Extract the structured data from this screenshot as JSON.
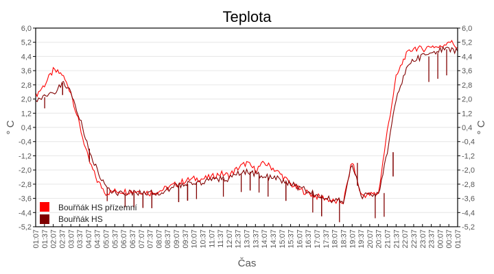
{
  "chart_data": {
    "type": "line",
    "title": "Teplota",
    "xlabel": "Čas",
    "ylabel": "° C",
    "ylim": [
      -5.2,
      6.0
    ],
    "yticks": [
      "6,0",
      "5,2",
      "4,4",
      "3,6",
      "2,8",
      "2,0",
      "1,2",
      "0,4",
      "-0,4",
      "-1,2",
      "-2,0",
      "-2,8",
      "-3,6",
      "-4,4",
      "-5,2"
    ],
    "grid": true,
    "legend_position": "lower-left-inside",
    "categories": [
      "01:07",
      "01:37",
      "02:07",
      "02:37",
      "03:07",
      "03:37",
      "04:07",
      "04:37",
      "05:07",
      "05:37",
      "06:07",
      "06:37",
      "07:07",
      "07:37",
      "08:07",
      "08:37",
      "09:07",
      "09:37",
      "10:07",
      "10:37",
      "11:07",
      "11:37",
      "12:07",
      "12:37",
      "13:07",
      "13:37",
      "14:07",
      "14:37",
      "15:07",
      "15:37",
      "16:07",
      "16:37",
      "17:07",
      "17:37",
      "18:07",
      "18:37",
      "19:07",
      "19:37",
      "20:07",
      "20:37",
      "21:07",
      "21:37",
      "22:07",
      "22:37",
      "23:07",
      "23:37",
      "00:07",
      "00:37",
      "01:07"
    ],
    "series": [
      {
        "name": "Bouřňák HS přízemní",
        "color": "#ff0000",
        "values": [
          2.2,
          2.8,
          3.6,
          3.4,
          2.4,
          0.5,
          -1.4,
          -2.6,
          -3.3,
          -3.2,
          -3.2,
          -3.2,
          -3.2,
          -3.3,
          -3.2,
          -3.0,
          -2.8,
          -2.6,
          -2.5,
          -2.5,
          -2.4,
          -2.2,
          -2.3,
          -1.9,
          -1.6,
          -2.0,
          -1.6,
          -1.9,
          -2.3,
          -2.8,
          -3.1,
          -3.3,
          -3.5,
          -3.6,
          -3.8,
          -3.8,
          -1.5,
          -3.4,
          -3.4,
          -3.3,
          0.2,
          3.2,
          4.4,
          4.9,
          4.8,
          5.0,
          4.9,
          5.3,
          4.9
        ]
      },
      {
        "name": "Bouřňák HS",
        "color": "#800000",
        "values": [
          1.9,
          2.1,
          2.3,
          2.9,
          2.4,
          1.0,
          -0.8,
          -2.0,
          -3.0,
          -3.3,
          -3.3,
          -3.3,
          -3.3,
          -3.3,
          -3.3,
          -3.1,
          -2.9,
          -2.8,
          -2.7,
          -2.7,
          -2.6,
          -2.5,
          -2.5,
          -2.2,
          -2.1,
          -2.2,
          -2.4,
          -2.4,
          -2.6,
          -2.8,
          -3.0,
          -3.2,
          -3.4,
          -3.6,
          -3.7,
          -3.8,
          -1.6,
          -3.5,
          -3.4,
          -3.3,
          -1.0,
          2.0,
          3.5,
          4.2,
          4.4,
          4.6,
          4.8,
          4.8,
          4.7
        ]
      }
    ]
  },
  "legend": {
    "items": [
      {
        "label": "Bouřňák HS přízemní",
        "color": "#ff0000"
      },
      {
        "label": "Bouřňák HS",
        "color": "#800000"
      }
    ]
  }
}
